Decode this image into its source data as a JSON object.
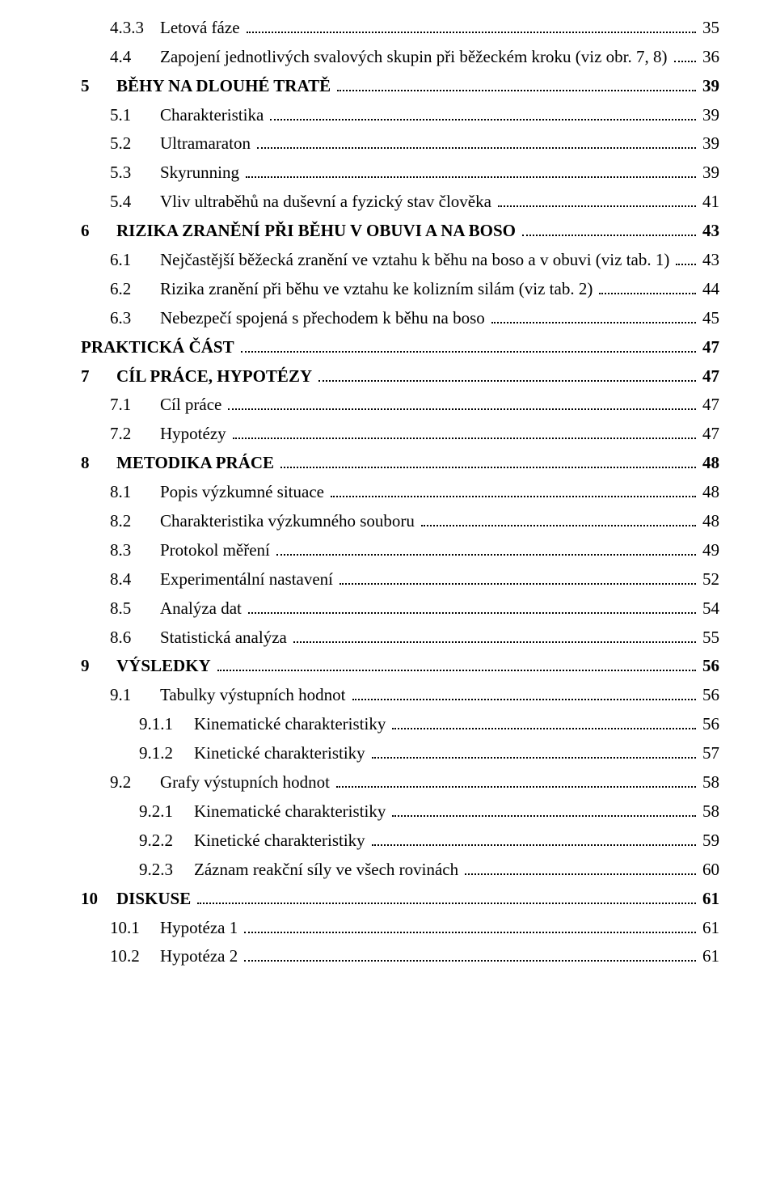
{
  "toc": [
    {
      "level": 2,
      "num": "4.3.3",
      "label": "Letová fáze",
      "page": "35"
    },
    {
      "level": 2,
      "num": "4.4",
      "label": "Zapojení jednotlivých svalových skupin při běžeckém kroku (viz obr. 7, 8)",
      "page": "36"
    },
    {
      "level": 1,
      "num": "5",
      "label": "BĚHY NA DLOUHÉ TRATĚ",
      "page": "39"
    },
    {
      "level": 2,
      "num": "5.1",
      "label": "Charakteristika",
      "page": "39"
    },
    {
      "level": 2,
      "num": "5.2",
      "label": "Ultramaraton",
      "page": "39"
    },
    {
      "level": 2,
      "num": "5.3",
      "label": "Skyrunning",
      "page": "39"
    },
    {
      "level": 2,
      "num": "5.4",
      "label": "Vliv ultraběhů na duševní a fyzický stav člověka",
      "page": "41"
    },
    {
      "level": 1,
      "num": "6",
      "label": "RIZIKA ZRANĚNÍ PŘI BĚHU V OBUVI A NA BOSO",
      "page": "43"
    },
    {
      "level": 2,
      "num": "6.1",
      "label": "Nejčastější běžecká zranění ve vztahu k běhu na boso  a v obuvi (viz tab. 1)",
      "page": "43"
    },
    {
      "level": 2,
      "num": "6.2",
      "label": "Rizika zranění při běhu ve vztahu ke kolizním silám (viz tab. 2)",
      "page": "44"
    },
    {
      "level": 2,
      "num": "6.3",
      "label": "Nebezpečí spojená s přechodem k běhu na boso",
      "page": "45"
    },
    {
      "level": 0,
      "num": "",
      "label": "PRAKTICKÁ ČÁST",
      "page": "47"
    },
    {
      "level": 1,
      "num": "7",
      "label": "CÍL PRÁCE, HYPOTÉZY",
      "page": "47"
    },
    {
      "level": 2,
      "num": "7.1",
      "label": "Cíl práce",
      "page": "47"
    },
    {
      "level": 2,
      "num": "7.2",
      "label": "Hypotézy",
      "page": "47"
    },
    {
      "level": 1,
      "num": "8",
      "label": "METODIKA PRÁCE",
      "page": "48"
    },
    {
      "level": 2,
      "num": "8.1",
      "label": "Popis výzkumné situace",
      "page": "48"
    },
    {
      "level": 2,
      "num": "8.2",
      "label": "Charakteristika výzkumného souboru",
      "page": "48"
    },
    {
      "level": 2,
      "num": "8.3",
      "label": "Protokol měření",
      "page": "49"
    },
    {
      "level": 2,
      "num": "8.4",
      "label": "Experimentální nastavení",
      "page": "52"
    },
    {
      "level": 2,
      "num": "8.5",
      "label": "Analýza dat",
      "page": "54"
    },
    {
      "level": 2,
      "num": "8.6",
      "label": "Statistická analýza",
      "page": "55"
    },
    {
      "level": 1,
      "num": "9",
      "label": "VÝSLEDKY",
      "page": "56"
    },
    {
      "level": 2,
      "num": "9.1",
      "label": "Tabulky výstupních hodnot",
      "page": "56"
    },
    {
      "level": 3,
      "num": "9.1.1",
      "label": "Kinematické charakteristiky",
      "page": "56"
    },
    {
      "level": 3,
      "num": "9.1.2",
      "label": "Kinetické charakteristiky",
      "page": "57"
    },
    {
      "level": 2,
      "num": "9.2",
      "label": "Grafy výstupních hodnot",
      "page": "58"
    },
    {
      "level": 3,
      "num": "9.2.1",
      "label": "Kinematické charakteristiky",
      "page": "58"
    },
    {
      "level": 3,
      "num": "9.2.2",
      "label": "Kinetické charakteristiky",
      "page": "59"
    },
    {
      "level": 3,
      "num": "9.2.3",
      "label": "Záznam reakční síly ve všech rovinách",
      "page": "60"
    },
    {
      "level": 1,
      "num": "10",
      "label": "DISKUSE",
      "page": "61"
    },
    {
      "level": 2,
      "num": "10.1",
      "label": "Hypotéza 1",
      "page": "61"
    },
    {
      "level": 2,
      "num": "10.2",
      "label": "Hypotéza 2",
      "page": "61"
    }
  ]
}
